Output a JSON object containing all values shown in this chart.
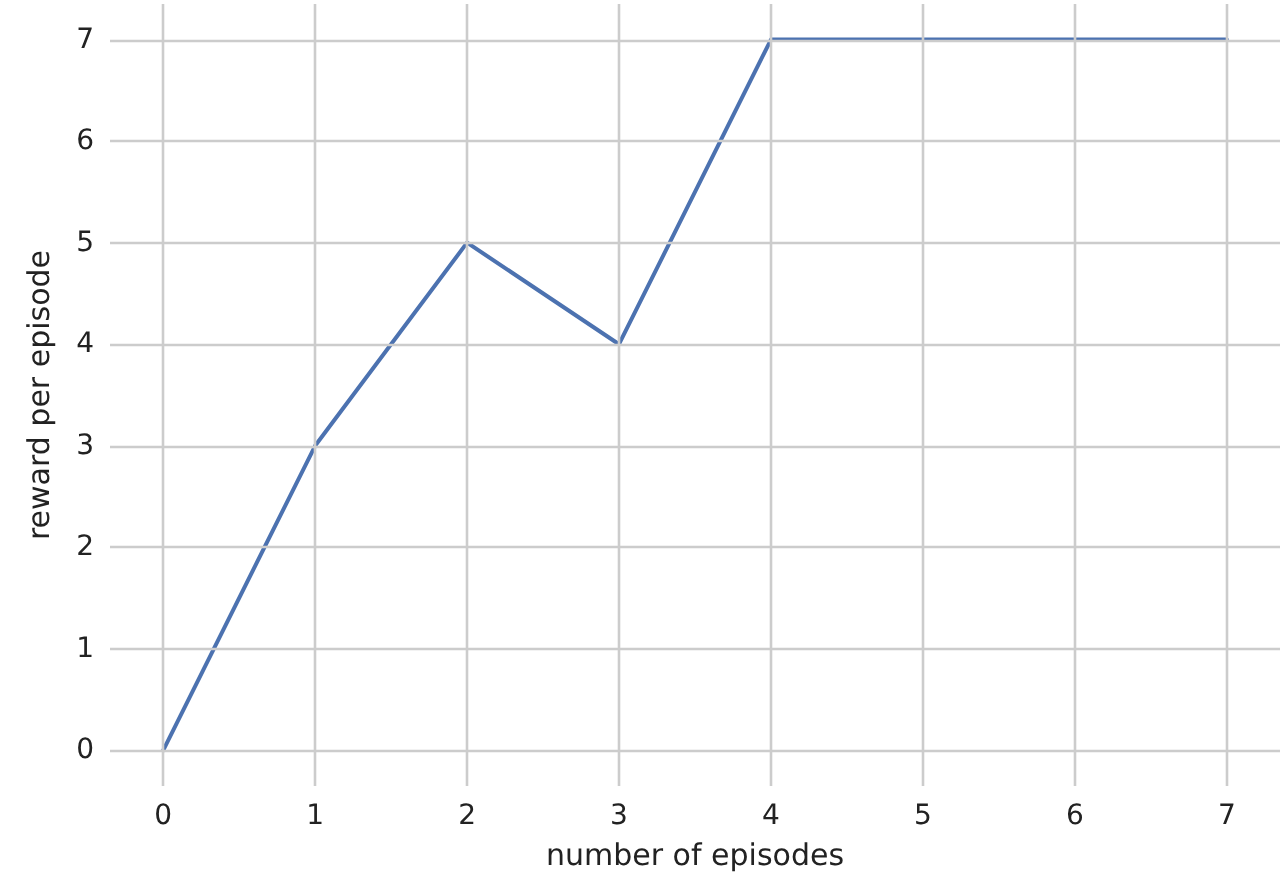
{
  "chart_data": {
    "type": "line",
    "xlabel": "number of episodes",
    "ylabel": "reward per episode",
    "x": [
      0,
      1,
      2,
      3,
      4,
      5,
      6,
      7
    ],
    "series": [
      {
        "color": "#4c72b0",
        "values": [
          0,
          3,
          5,
          4,
          7,
          7,
          7,
          7
        ]
      }
    ],
    "xlim": [
      -0.35,
      7.35
    ],
    "ylim": [
      -0.35,
      7.35
    ],
    "xticks": [
      0,
      1,
      2,
      3,
      4,
      5,
      6,
      7
    ],
    "yticks": [
      0,
      1,
      2,
      3,
      4,
      5,
      6,
      7
    ],
    "grid": true,
    "marker": "none",
    "line_style": "solid"
  }
}
